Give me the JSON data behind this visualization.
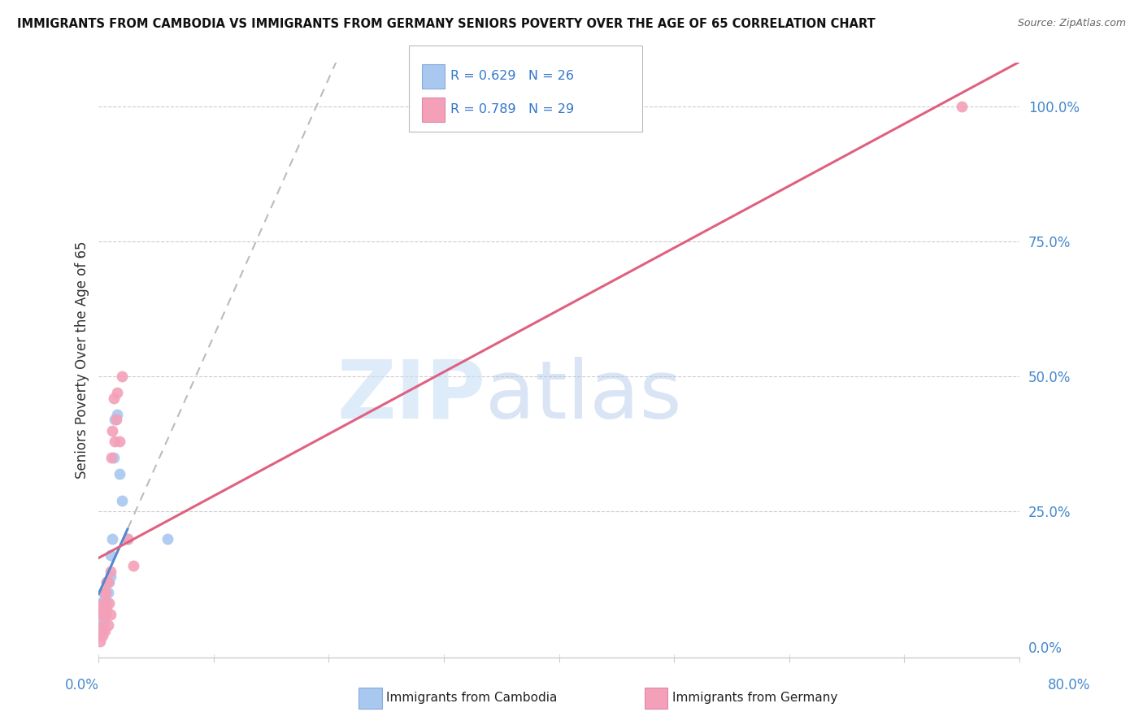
{
  "title": "IMMIGRANTS FROM CAMBODIA VS IMMIGRANTS FROM GERMANY SENIORS POVERTY OVER THE AGE OF 65 CORRELATION CHART",
  "source": "Source: ZipAtlas.com",
  "ylabel": "Seniors Poverty Over the Age of 65",
  "xlim": [
    0,
    0.8
  ],
  "ylim": [
    -0.02,
    1.08
  ],
  "yticks": [
    0.0,
    0.25,
    0.5,
    0.75,
    1.0
  ],
  "ytick_labels": [
    "0.0%",
    "25.0%",
    "50.0%",
    "75.0%",
    "100.0%"
  ],
  "xtick_labels": [
    "0.0%",
    "",
    "",
    "",
    "",
    "",
    "",
    "",
    "80.0%"
  ],
  "background_color": "#ffffff",
  "grid_color": "#cccccc",
  "watermark_zip": "ZIP",
  "watermark_atlas": "atlas",
  "cambodia": {
    "R": 0.629,
    "N": 26,
    "color": "#a8c8f0",
    "line_color": "#5588cc",
    "x": [
      0.001,
      0.002,
      0.002,
      0.003,
      0.003,
      0.004,
      0.004,
      0.004,
      0.005,
      0.005,
      0.006,
      0.006,
      0.007,
      0.007,
      0.008,
      0.009,
      0.01,
      0.01,
      0.012,
      0.013,
      0.014,
      0.016,
      0.018,
      0.02,
      0.025,
      0.06
    ],
    "y": [
      0.02,
      0.05,
      0.08,
      0.03,
      0.06,
      0.04,
      0.07,
      0.1,
      0.05,
      0.09,
      0.06,
      0.1,
      0.08,
      0.12,
      0.1,
      0.12,
      0.13,
      0.17,
      0.2,
      0.35,
      0.42,
      0.43,
      0.32,
      0.27,
      0.2,
      0.2
    ]
  },
  "germany": {
    "R": 0.789,
    "N": 29,
    "color": "#f4a0b8",
    "line_color": "#e06080",
    "x": [
      0.001,
      0.002,
      0.002,
      0.003,
      0.003,
      0.004,
      0.004,
      0.005,
      0.005,
      0.006,
      0.006,
      0.007,
      0.007,
      0.008,
      0.008,
      0.009,
      0.01,
      0.01,
      0.011,
      0.012,
      0.013,
      0.014,
      0.015,
      0.016,
      0.018,
      0.02,
      0.025,
      0.03,
      0.75
    ],
    "y": [
      0.01,
      0.03,
      0.06,
      0.02,
      0.07,
      0.04,
      0.08,
      0.03,
      0.1,
      0.06,
      0.1,
      0.07,
      0.12,
      0.04,
      0.12,
      0.08,
      0.06,
      0.14,
      0.35,
      0.4,
      0.46,
      0.38,
      0.42,
      0.47,
      0.38,
      0.5,
      0.2,
      0.15,
      1.0
    ]
  },
  "legend_box_color_cambodia": "#a8c8f0",
  "legend_box_color_germany": "#f4a0b8",
  "legend_text_color": "#3377cc"
}
